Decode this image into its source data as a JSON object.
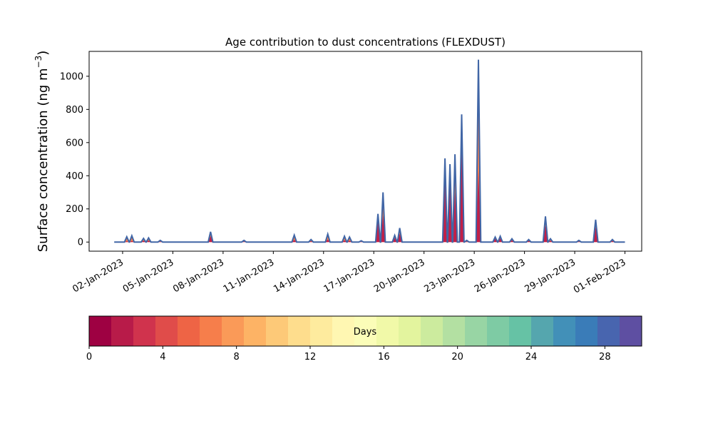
{
  "chart_data": {
    "type": "area",
    "title": "Age contribution to dust concentrations (FLEXDUST)",
    "ylabel": "Surface concentration (ng m",
    "ylabel_sup": "−3",
    "ylabel_close": ")",
    "xlabel": "",
    "x_start": "2023-01-01",
    "x_end": "2023-02-01",
    "xlim": [
      "2022-12-31",
      "2023-02-02"
    ],
    "ylim": [
      -55,
      1150
    ],
    "x_ticks": [
      "02-Jan-2023",
      "05-Jan-2023",
      "08-Jan-2023",
      "11-Jan-2023",
      "14-Jan-2023",
      "17-Jan-2023",
      "20-Jan-2023",
      "23-Jan-2023",
      "26-Jan-2023",
      "29-Jan-2023",
      "01-Feb-2023"
    ],
    "y_ticks": [
      0,
      200,
      400,
      600,
      800,
      1000
    ],
    "grid": false,
    "peaks": [
      {
        "date": "2023-01-02",
        "total": 32,
        "young": 5
      },
      {
        "date": "2023-01-02",
        "total": 38,
        "young": 6
      },
      {
        "date": "2023-01-03",
        "total": 22,
        "young": 8
      },
      {
        "date": "2023-01-03",
        "total": 25,
        "young": 9
      },
      {
        "date": "2023-01-04",
        "total": 10,
        "young": 3
      },
      {
        "date": "2023-01-07",
        "total": 62,
        "young": 35
      },
      {
        "date": "2023-01-09",
        "total": 10,
        "young": 4
      },
      {
        "date": "2023-01-12",
        "total": 42,
        "young": 12
      },
      {
        "date": "2023-01-13",
        "total": 15,
        "young": 5
      },
      {
        "date": "2023-01-14",
        "total": 48,
        "young": 15
      },
      {
        "date": "2023-01-15",
        "total": 35,
        "young": 10
      },
      {
        "date": "2023-01-15",
        "total": 30,
        "young": 8
      },
      {
        "date": "2023-01-16",
        "total": 8,
        "young": 3
      },
      {
        "date": "2023-01-17",
        "total": 170,
        "young": 140
      },
      {
        "date": "2023-01-17",
        "total": 300,
        "young": 160
      },
      {
        "date": "2023-01-18",
        "total": 40,
        "young": 25
      },
      {
        "date": "2023-01-18",
        "total": 85,
        "young": 50
      },
      {
        "date": "2023-01-21",
        "total": 505,
        "young": 420
      },
      {
        "date": "2023-01-21",
        "total": 470,
        "young": 380
      },
      {
        "date": "2023-01-21",
        "total": 530,
        "young": 300
      },
      {
        "date": "2023-01-22",
        "total": 770,
        "young": 590
      },
      {
        "date": "2023-01-22",
        "total": 10,
        "young": 3
      },
      {
        "date": "2023-01-23",
        "total": 1100,
        "young": 430
      },
      {
        "date": "2023-01-24",
        "total": 30,
        "young": 20
      },
      {
        "date": "2023-01-24",
        "total": 35,
        "young": 22
      },
      {
        "date": "2023-01-25",
        "total": 20,
        "young": 10
      },
      {
        "date": "2023-01-26",
        "total": 15,
        "young": 8
      },
      {
        "date": "2023-01-27",
        "total": 155,
        "young": 100
      },
      {
        "date": "2023-01-27",
        "total": 20,
        "young": 8
      },
      {
        "date": "2023-01-29",
        "total": 10,
        "young": 4
      },
      {
        "date": "2023-01-30",
        "total": 135,
        "young": 90
      },
      {
        "date": "2023-01-31",
        "total": 15,
        "young": 6
      }
    ],
    "colorbar": {
      "label": "Days",
      "range": [
        0,
        30
      ],
      "ticks": [
        0,
        4,
        8,
        12,
        16,
        20,
        24,
        28
      ],
      "colors": [
        "#9e0142",
        "#b81b49",
        "#d0334d",
        "#e04c4a",
        "#ee6445",
        "#f67e4b",
        "#fa9a58",
        "#fdb365",
        "#fdc978",
        "#fedd8d",
        "#feeb9e",
        "#fff7b2",
        "#fbfdb8",
        "#f1f9a8",
        "#e3f49e",
        "#cceb9e",
        "#b3e0a2",
        "#98d5a4",
        "#7ecba4",
        "#66c2a5",
        "#55a6ae",
        "#4290b8",
        "#3a7cb8",
        "#4865af",
        "#5e4fa2"
      ]
    },
    "series_colors": {
      "total": "#4166a6",
      "layer_orange": "#f67e4b",
      "layer_red": "#c21f47",
      "layer_yellow": "#fdc978"
    }
  }
}
